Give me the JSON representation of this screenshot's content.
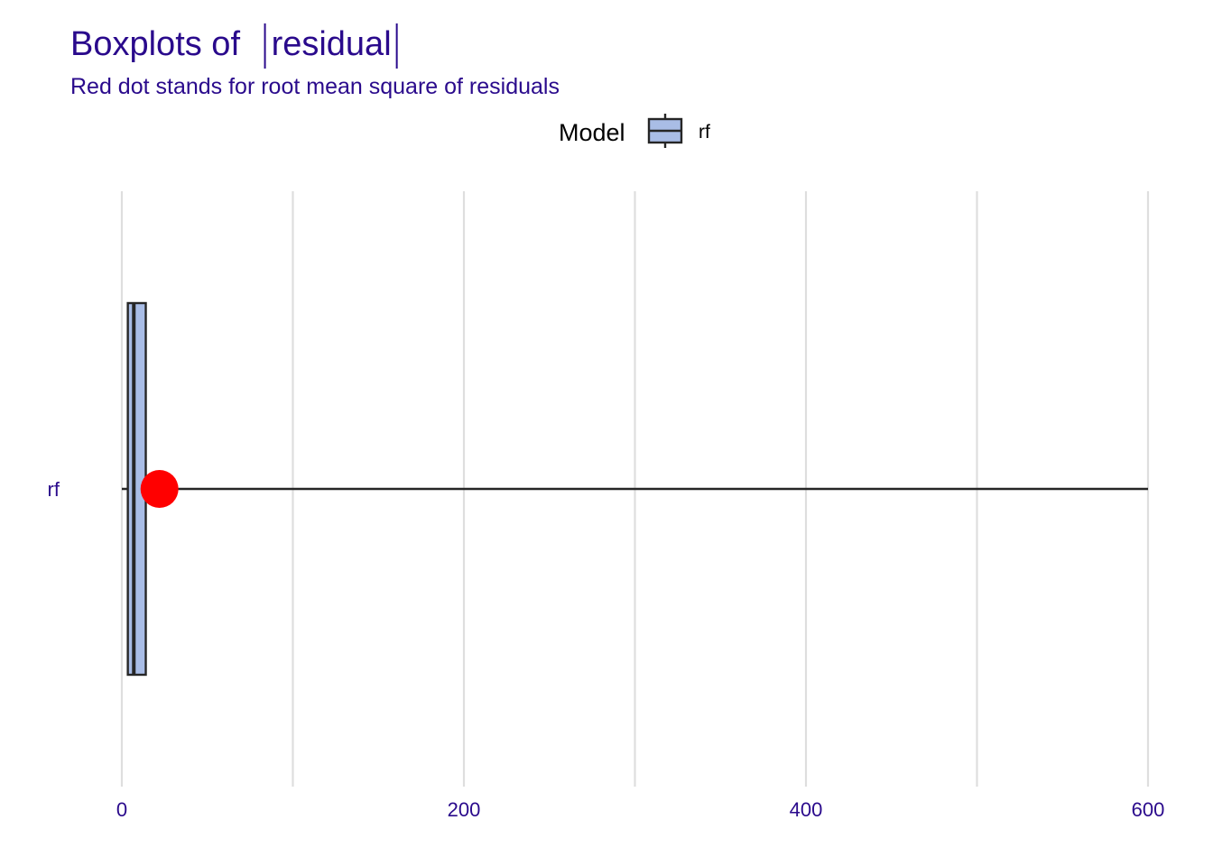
{
  "chart_data": {
    "type": "boxplot",
    "title_prefix": "Boxplots of ",
    "title_var": "residual",
    "subtitle": "Red dot stands for root mean square of residuals",
    "legend": {
      "title": "Model",
      "entries": [
        "rf"
      ],
      "placement": "top"
    },
    "orientation": "horizontal",
    "x_ticks": [
      0,
      200,
      400,
      600
    ],
    "x_grid_minor": [
      100,
      300,
      500
    ],
    "xlim": [
      0,
      600
    ],
    "grid": true,
    "categories": [
      "rf"
    ],
    "series": [
      {
        "name": "rf",
        "min": 0,
        "q1": 3.5,
        "median": 7,
        "q3": 14,
        "max": 600,
        "rmse": 22,
        "color": "#a9bde6",
        "rmse_color": "#ff0000"
      }
    ]
  }
}
